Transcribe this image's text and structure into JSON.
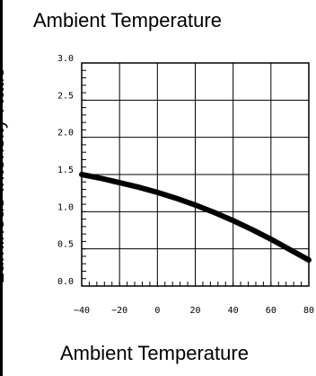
{
  "chart_data": {
    "type": "line",
    "title": "Ambient Temperature",
    "xlabel": "Ambient Temperature",
    "ylabel": "Luminous Intensity Ratio",
    "xlim": [
      -40,
      80
    ],
    "ylim": [
      0.0,
      3.0
    ],
    "x_ticks": [
      -40,
      -20,
      0,
      20,
      40,
      60,
      80
    ],
    "x_tick_labels": [
      "−40",
      "−20",
      "0",
      "20",
      "40",
      "60",
      "80"
    ],
    "y_ticks": [
      0.0,
      0.5,
      1.0,
      1.5,
      2.0,
      2.5,
      3.0
    ],
    "y_tick_labels": [
      "0.0",
      "0.5",
      "1.0",
      "1.5",
      "2.0",
      "2.5",
      "3.0"
    ],
    "grid": true,
    "series": [
      {
        "x": [
          -40,
          -30,
          -20,
          -10,
          0,
          10,
          20,
          30,
          40,
          50,
          60,
          70,
          80
        ],
        "values": [
          1.5,
          1.45,
          1.39,
          1.33,
          1.26,
          1.18,
          1.09,
          0.99,
          0.88,
          0.76,
          0.63,
          0.49,
          0.35
        ],
        "color": "#000000"
      }
    ]
  }
}
